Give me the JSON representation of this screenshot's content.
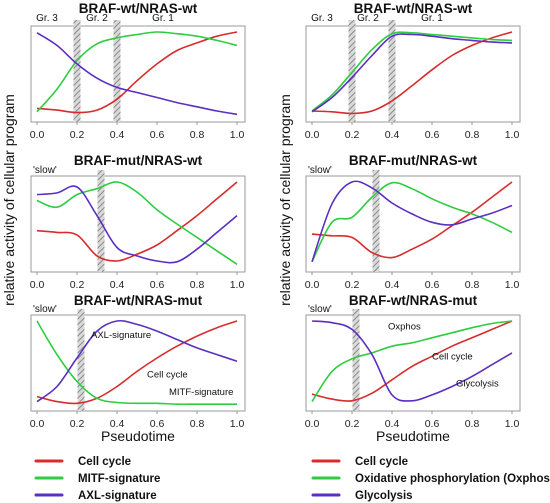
{
  "figure": {
    "ylabel": "relative activity of cellular program",
    "xlabel": "Pseudotime",
    "legend_left": [
      {
        "label": "Cell cycle",
        "color": "#d82c2c"
      },
      {
        "label": "MITF-signature",
        "color": "#2ecc40"
      },
      {
        "label": "AXL-signature",
        "color": "#5a2fc2"
      }
    ],
    "legend_right": [
      {
        "label": "Cell cycle",
        "color": "#d82c2c"
      },
      {
        "label": "Oxidative phosphorylation (Oxphos)",
        "color": "#2ecc40"
      },
      {
        "label": "Glycolysis",
        "color": "#5a2fc2"
      }
    ]
  },
  "chart_data": [
    {
      "type": "line",
      "title": "BRAF-wt/NRAS-wt",
      "slow_label": "",
      "xticks": [
        "0.0",
        "0.2",
        "0.4",
        "0.6",
        "0.8",
        "1.0"
      ],
      "xlim": [
        0,
        1
      ],
      "ylim": [
        0,
        1
      ],
      "group_labels": [
        {
          "text": "Gr. 3",
          "x": 0.05
        },
        {
          "text": "Gr. 2",
          "x": 0.3
        },
        {
          "text": "Gr. 1",
          "x": 0.63
        }
      ],
      "dividers": [
        0.2,
        0.4
      ],
      "annotations": [],
      "series": [
        {
          "name": "Cell cycle",
          "color": "#d82c2c",
          "x": [
            0,
            0.1,
            0.2,
            0.3,
            0.4,
            0.5,
            0.6,
            0.7,
            0.8,
            0.9,
            1.0
          ],
          "y": [
            0.09,
            0.07,
            0.04,
            0.07,
            0.2,
            0.42,
            0.62,
            0.78,
            0.87,
            0.95,
            1.0
          ]
        },
        {
          "name": "MITF-signature",
          "color": "#2ecc40",
          "x": [
            0,
            0.1,
            0.2,
            0.3,
            0.4,
            0.5,
            0.6,
            0.7,
            0.8,
            0.9,
            1.0
          ],
          "y": [
            0.05,
            0.32,
            0.66,
            0.86,
            0.93,
            0.97,
            1.0,
            0.98,
            0.95,
            0.9,
            0.84
          ]
        },
        {
          "name": "AXL-signature",
          "color": "#5a2fc2",
          "x": [
            0,
            0.1,
            0.2,
            0.3,
            0.4,
            0.5,
            0.6,
            0.7,
            0.8,
            0.9,
            1.0
          ],
          "y": [
            0.99,
            0.84,
            0.62,
            0.45,
            0.34,
            0.28,
            0.22,
            0.16,
            0.11,
            0.06,
            0.02
          ]
        }
      ]
    },
    {
      "type": "line",
      "title": "BRAF-wt/NRAS-wt",
      "slow_label": "",
      "xticks": [
        "0.0",
        "0.2",
        "0.4",
        "0.6",
        "0.8",
        "1.0"
      ],
      "xlim": [
        0,
        1
      ],
      "ylim": [
        0,
        1
      ],
      "group_labels": [
        {
          "text": "Gr. 3",
          "x": 0.05
        },
        {
          "text": "Gr. 2",
          "x": 0.28
        },
        {
          "text": "Gr. 1",
          "x": 0.6
        }
      ],
      "dividers": [
        0.2,
        0.4
      ],
      "annotations": [],
      "series": [
        {
          "name": "Cell cycle",
          "color": "#d82c2c",
          "x": [
            0,
            0.1,
            0.2,
            0.3,
            0.4,
            0.5,
            0.6,
            0.7,
            0.8,
            0.9,
            1.0
          ],
          "y": [
            0.06,
            0.05,
            0.03,
            0.06,
            0.18,
            0.36,
            0.55,
            0.72,
            0.84,
            0.93,
            1.0
          ]
        },
        {
          "name": "Oxidative phosphorylation (Oxphos)",
          "color": "#2ecc40",
          "x": [
            0,
            0.1,
            0.2,
            0.3,
            0.4,
            0.5,
            0.6,
            0.7,
            0.8,
            0.9,
            1.0
          ],
          "y": [
            0.06,
            0.25,
            0.52,
            0.79,
            0.98,
            0.99,
            0.97,
            0.95,
            0.93,
            0.91,
            0.9
          ]
        },
        {
          "name": "Glycolysis",
          "color": "#5a2fc2",
          "x": [
            0,
            0.1,
            0.2,
            0.3,
            0.4,
            0.5,
            0.6,
            0.7,
            0.8,
            0.9,
            1.0
          ],
          "y": [
            0.05,
            0.22,
            0.46,
            0.72,
            0.95,
            0.97,
            0.95,
            0.92,
            0.9,
            0.88,
            0.87
          ]
        }
      ]
    },
    {
      "type": "line",
      "title": "BRAF-mut/NRAS-wt",
      "slow_label": "'slow'",
      "xticks": [
        "0.0",
        "0.2",
        "0.4",
        "0.6",
        "0.8",
        "1.0"
      ],
      "xlim": [
        0,
        1
      ],
      "ylim": [
        0,
        1
      ],
      "group_labels": [],
      "dividers": [
        0.32
      ],
      "annotations": [],
      "series": [
        {
          "name": "Cell cycle",
          "color": "#d82c2c",
          "x": [
            0,
            0.1,
            0.2,
            0.3,
            0.4,
            0.5,
            0.6,
            0.7,
            0.8,
            0.9,
            1.0
          ],
          "y": [
            0.42,
            0.4,
            0.37,
            0.12,
            0.06,
            0.14,
            0.25,
            0.42,
            0.6,
            0.8,
            1.0
          ]
        },
        {
          "name": "MITF-signature",
          "color": "#2ecc40",
          "x": [
            0,
            0.1,
            0.2,
            0.3,
            0.4,
            0.5,
            0.6,
            0.7,
            0.8,
            0.9,
            1.0
          ],
          "y": [
            0.78,
            0.7,
            0.85,
            0.92,
            1.0,
            0.88,
            0.67,
            0.5,
            0.34,
            0.18,
            0.02
          ]
        },
        {
          "name": "AXL-signature",
          "color": "#5a2fc2",
          "x": [
            0,
            0.1,
            0.2,
            0.3,
            0.4,
            0.5,
            0.6,
            0.7,
            0.8,
            0.9,
            1.0
          ],
          "y": [
            0.85,
            0.87,
            0.94,
            0.6,
            0.22,
            0.12,
            0.06,
            0.05,
            0.2,
            0.4,
            0.6
          ]
        }
      ]
    },
    {
      "type": "line",
      "title": "BRAF-mut/NRAS-wt",
      "slow_label": "'slow'",
      "xticks": [
        "0.0",
        "0.2",
        "0.4",
        "0.6",
        "0.8",
        "1.0"
      ],
      "xlim": [
        0,
        1
      ],
      "ylim": [
        0,
        1
      ],
      "group_labels": [],
      "dividers": [
        0.32
      ],
      "annotations": [],
      "series": [
        {
          "name": "Cell cycle",
          "color": "#d82c2c",
          "x": [
            0,
            0.1,
            0.2,
            0.3,
            0.4,
            0.5,
            0.6,
            0.7,
            0.8,
            0.9,
            1.0
          ],
          "y": [
            0.38,
            0.36,
            0.34,
            0.16,
            0.1,
            0.2,
            0.32,
            0.48,
            0.64,
            0.82,
            1.0
          ]
        },
        {
          "name": "Oxidative phosphorylation (Oxphos)",
          "color": "#2ecc40",
          "x": [
            0,
            0.1,
            0.2,
            0.3,
            0.4,
            0.5,
            0.6,
            0.7,
            0.8,
            0.9,
            1.0
          ],
          "y": [
            0.05,
            0.52,
            0.58,
            0.82,
            0.99,
            0.92,
            0.8,
            0.7,
            0.62,
            0.52,
            0.4
          ]
        },
        {
          "name": "Glycolysis",
          "color": "#5a2fc2",
          "x": [
            0,
            0.1,
            0.2,
            0.3,
            0.4,
            0.5,
            0.6,
            0.7,
            0.8,
            0.9,
            1.0
          ],
          "y": [
            0.05,
            0.74,
            1.0,
            0.93,
            0.75,
            0.62,
            0.52,
            0.49,
            0.56,
            0.63,
            0.72
          ]
        }
      ]
    },
    {
      "type": "line",
      "title": "BRAF-wt/NRAS-mut",
      "slow_label": "'slow'",
      "xticks": [
        "0.0",
        "0.2",
        "0.4",
        "0.6",
        "0.8",
        "1.0"
      ],
      "xlim": [
        0,
        1
      ],
      "ylim": [
        0,
        1
      ],
      "group_labels": [],
      "dividers": [
        0.22
      ],
      "annotations": [
        {
          "text": "AXL-signature",
          "x": 0.27,
          "y": 0.8
        },
        {
          "text": "Cell cycle",
          "x": 0.55,
          "y": 0.33
        },
        {
          "text": "MITF-signature",
          "x": 0.66,
          "y": 0.12
        }
      ],
      "series": [
        {
          "name": "Cell cycle",
          "color": "#d82c2c",
          "x": [
            0,
            0.1,
            0.2,
            0.3,
            0.4,
            0.5,
            0.6,
            0.7,
            0.8,
            0.9,
            1.0
          ],
          "y": [
            0.1,
            0.04,
            0.02,
            0.08,
            0.22,
            0.4,
            0.56,
            0.7,
            0.82,
            0.92,
            1.0
          ]
        },
        {
          "name": "MITF-signature",
          "color": "#2ecc40",
          "x": [
            0,
            0.1,
            0.2,
            0.3,
            0.4,
            0.5,
            0.6,
            0.7,
            0.8,
            0.9,
            1.0
          ],
          "y": [
            1.0,
            0.6,
            0.28,
            0.08,
            0.03,
            0.02,
            0.02,
            0.01,
            0.01,
            0.01,
            0.01
          ]
        },
        {
          "name": "AXL-signature",
          "color": "#5a2fc2",
          "x": [
            0,
            0.1,
            0.2,
            0.3,
            0.4,
            0.5,
            0.6,
            0.7,
            0.8,
            0.9,
            1.0
          ],
          "y": [
            0.04,
            0.22,
            0.56,
            0.88,
            1.0,
            0.96,
            0.88,
            0.78,
            0.68,
            0.6,
            0.52
          ]
        }
      ]
    },
    {
      "type": "line",
      "title": "BRAF-wt/NRAS-mut",
      "slow_label": "'slow'",
      "xticks": [
        "0.0",
        "0.2",
        "0.4",
        "0.6",
        "0.8",
        "1.0"
      ],
      "xlim": [
        0,
        1
      ],
      "ylim": [
        0,
        1
      ],
      "group_labels": [],
      "dividers": [
        0.22
      ],
      "annotations": [
        {
          "text": "Oxphos",
          "x": 0.38,
          "y": 0.9
        },
        {
          "text": "Cell cycle",
          "x": 0.6,
          "y": 0.54
        },
        {
          "text": "Glycolysis",
          "x": 0.72,
          "y": 0.22
        }
      ],
      "series": [
        {
          "name": "Cell cycle",
          "color": "#d82c2c",
          "x": [
            0,
            0.1,
            0.2,
            0.3,
            0.4,
            0.5,
            0.6,
            0.7,
            0.8,
            0.9,
            1.0
          ],
          "y": [
            0.13,
            0.07,
            0.05,
            0.14,
            0.3,
            0.46,
            0.58,
            0.7,
            0.8,
            0.9,
            1.0
          ]
        },
        {
          "name": "Oxidative phosphorylation (Oxphos)",
          "color": "#2ecc40",
          "x": [
            0,
            0.1,
            0.2,
            0.3,
            0.4,
            0.5,
            0.6,
            0.7,
            0.8,
            0.9,
            1.0
          ],
          "y": [
            0.04,
            0.4,
            0.55,
            0.62,
            0.7,
            0.74,
            0.8,
            0.86,
            0.92,
            0.97,
            1.0
          ]
        },
        {
          "name": "Glycolysis",
          "color": "#5a2fc2",
          "x": [
            0,
            0.1,
            0.2,
            0.3,
            0.4,
            0.5,
            0.6,
            0.7,
            0.8,
            0.9,
            1.0
          ],
          "y": [
            1.0,
            0.98,
            0.9,
            0.6,
            0.12,
            0.05,
            0.12,
            0.22,
            0.34,
            0.48,
            0.62
          ]
        }
      ]
    }
  ]
}
